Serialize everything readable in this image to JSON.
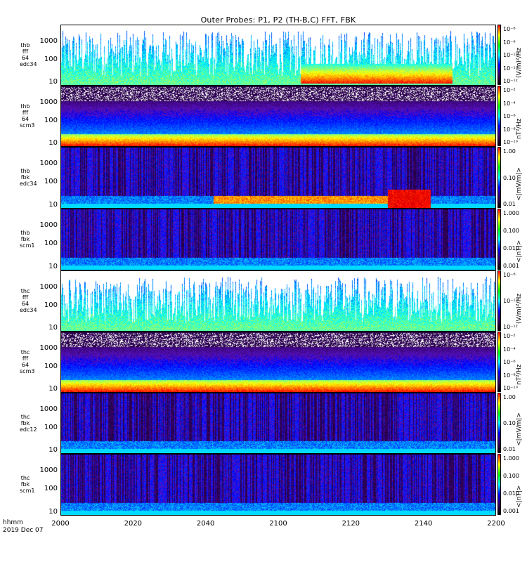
{
  "chart_data": {
    "type": "heatmap",
    "title": "Outer Probes: P1, P2 (TH-B,C) FFT, FBK",
    "x_ticks": [
      "2000",
      "2020",
      "2040",
      "2100",
      "2120",
      "2140",
      "2200"
    ],
    "x_label_top": "hhmm",
    "x_label_date": "2019 Dec 07",
    "panels": [
      {
        "label": [
          "thb",
          "fff",
          "64",
          "edc34"
        ],
        "y_ticks": [
          "1000",
          "100",
          "10"
        ],
        "scale": "log",
        "colorbar_ticks": [
          "10⁻⁸",
          "10⁻⁹",
          "10⁻¹⁰",
          "10⁻¹¹",
          "10⁻¹²"
        ],
        "colorbar_unit": "(V/m)²/Hz"
      },
      {
        "label": [
          "thb",
          "fff",
          "64",
          "scm3"
        ],
        "y_ticks": [
          "1000",
          "100",
          "10"
        ],
        "scale": "log",
        "colorbar_ticks": [
          "10⁻²",
          "10⁻⁴",
          "10⁻⁶",
          "10⁻⁸",
          "10⁻¹⁰"
        ],
        "colorbar_unit": "nT²/Hz"
      },
      {
        "label": [
          "thb",
          "fbk",
          "edc34"
        ],
        "y_ticks": [
          "1000",
          "100",
          "10"
        ],
        "scale": "log",
        "colorbar_ticks": [
          "1.00",
          "0.10",
          "0.01"
        ],
        "colorbar_unit": "<|mV/m|>"
      },
      {
        "label": [
          "thb",
          "fbk",
          "scm1"
        ],
        "y_ticks": [
          "1000",
          "100",
          "10"
        ],
        "scale": "log",
        "colorbar_ticks": [
          "1.000",
          "0.100",
          "0.010",
          "0.001"
        ],
        "colorbar_unit": "<|nT|>"
      },
      {
        "label": [
          "thc",
          "fff",
          "64",
          "edc34"
        ],
        "y_ticks": [
          "1000",
          "100",
          "10"
        ],
        "scale": "log",
        "colorbar_ticks": [
          "10⁻⁸",
          "10⁻¹⁰",
          "10⁻¹²"
        ],
        "colorbar_unit": "(V/m)²/Hz"
      },
      {
        "label": [
          "thc",
          "fff",
          "64",
          "scm3"
        ],
        "y_ticks": [
          "1000",
          "100",
          "10"
        ],
        "scale": "log",
        "colorbar_ticks": [
          "10⁻²",
          "10⁻⁴",
          "10⁻⁶",
          "10⁻⁸",
          "10⁻¹⁰"
        ],
        "colorbar_unit": "nT²/Hz"
      },
      {
        "label": [
          "thc",
          "fbk",
          "edc12"
        ],
        "y_ticks": [
          "1000",
          "100",
          "10"
        ],
        "scale": "log",
        "colorbar_ticks": [
          "1.00",
          "0.10",
          "0.01"
        ],
        "colorbar_unit": "<|mV/m|>"
      },
      {
        "label": [
          "thc",
          "fbk",
          "scm1"
        ],
        "y_ticks": [
          "1000",
          "100",
          "10"
        ],
        "scale": "log",
        "colorbar_ticks": [
          "1.000",
          "0.100",
          "0.010",
          "0.001"
        ],
        "colorbar_unit": "<|nT|>"
      }
    ]
  }
}
